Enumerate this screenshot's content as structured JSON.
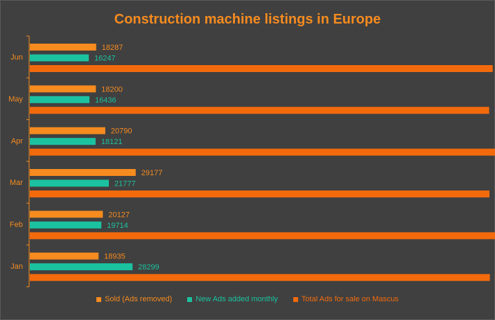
{
  "colors": {
    "background": "#404040",
    "title": "#F68B1F",
    "axis": "#F68B1F",
    "sold": "#F68B1F",
    "new_ads": "#1BC2A0",
    "total": "#F36A0D"
  },
  "chart_data": {
    "type": "bar",
    "orientation": "horizontal",
    "title": "Construction machine listings in Europe",
    "categories": [
      "Jan",
      "Feb",
      "Mar",
      "Apr",
      "May",
      "Jun"
    ],
    "series": [
      {
        "name": "Sold (Ads removed)",
        "values": [
          18935,
          20127,
          29177,
          20790,
          18200,
          18287
        ]
      },
      {
        "name": "New Ads added monthly",
        "values": [
          28299,
          19714,
          21777,
          18121,
          16436,
          16247
        ]
      },
      {
        "name": "Total Ads for sale on Mascus",
        "values": [
          126744,
          130275,
          126633,
          128511,
          126545,
          127530
        ]
      }
    ],
    "xlim": [
      0,
      140000
    ],
    "grid": false,
    "legend_position": "bottom",
    "data_labels": true
  }
}
